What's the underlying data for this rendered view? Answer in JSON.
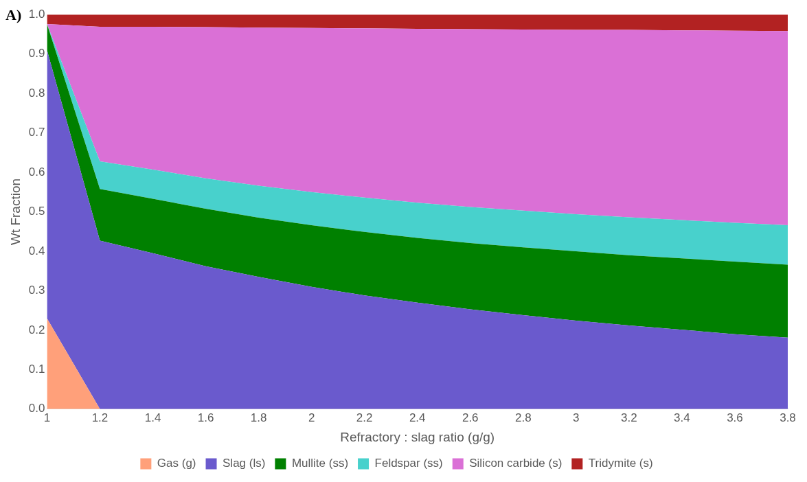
{
  "chart_data": {
    "type": "area",
    "stacked": true,
    "xlabel": "Refractory : slag ratio (g/g)",
    "ylabel": "Wt Fraction",
    "annotations": [
      "A)"
    ],
    "x": [
      1,
      1.2,
      1.4,
      1.6,
      1.8,
      2,
      2.2,
      2.4,
      2.6,
      2.8,
      3,
      3.2,
      3.4,
      3.6,
      3.8
    ],
    "xlim": [
      1,
      3.8
    ],
    "xticks": [
      1,
      1.2,
      1.4,
      1.6,
      1.8,
      2,
      2.2,
      2.4,
      2.6,
      2.8,
      3,
      3.2,
      3.4,
      3.6,
      3.8
    ],
    "ylim": [
      0,
      1
    ],
    "yticks": [
      {
        "value": 0,
        "label": "0.0"
      },
      {
        "value": 0.1,
        "label": "0.1"
      },
      {
        "value": 0.2,
        "label": "0.2"
      },
      {
        "value": 0.3,
        "label": "0.3"
      },
      {
        "value": 0.4,
        "label": "0.4"
      },
      {
        "value": 0.5,
        "label": "0.5"
      },
      {
        "value": 0.6,
        "label": "0.6"
      },
      {
        "value": 0.7,
        "label": "0.7"
      },
      {
        "value": 0.8,
        "label": "0.8"
      },
      {
        "value": 0.9,
        "label": "0.9"
      },
      {
        "value": 1,
        "label": "1.0"
      }
    ],
    "grid": false,
    "legend": "bottom",
    "series": [
      {
        "name": "Gas (g)",
        "color": "#ffa07a",
        "values": [
          0.23,
          0,
          0,
          0,
          0,
          0,
          0,
          0,
          0,
          0,
          0,
          0,
          0,
          0,
          0
        ]
      },
      {
        "name": "Slag (ls)",
        "color": "#6a5acd",
        "values": [
          0.68,
          0.427,
          0.395,
          0.362,
          0.335,
          0.31,
          0.288,
          0.27,
          0.253,
          0.238,
          0.224,
          0.212,
          0.201,
          0.19,
          0.181
        ]
      },
      {
        "name": "Mullite (ss)",
        "color": "#008000",
        "values": [
          0.066,
          0.131,
          0.138,
          0.146,
          0.15,
          0.156,
          0.161,
          0.164,
          0.168,
          0.172,
          0.176,
          0.178,
          0.181,
          0.184,
          0.185
        ]
      },
      {
        "name": "Feldspar (ss)",
        "color": "#48d1cc",
        "values": [
          0,
          0.07,
          0.074,
          0.077,
          0.081,
          0.084,
          0.087,
          0.089,
          0.091,
          0.093,
          0.094,
          0.096,
          0.097,
          0.098,
          0.1
        ]
      },
      {
        "name": "Silicon carbide (s)",
        "color": "#da70d6",
        "values": [
          0,
          0.341,
          0.362,
          0.383,
          0.401,
          0.416,
          0.429,
          0.441,
          0.451,
          0.459,
          0.467,
          0.475,
          0.481,
          0.487,
          0.492
        ]
      },
      {
        "name": "Tridymite (s)",
        "color": "#b22222",
        "values": [
          0.024,
          0.031,
          0.031,
          0.032,
          0.033,
          0.034,
          0.035,
          0.036,
          0.037,
          0.038,
          0.039,
          0.039,
          0.04,
          0.041,
          0.042
        ]
      }
    ]
  }
}
